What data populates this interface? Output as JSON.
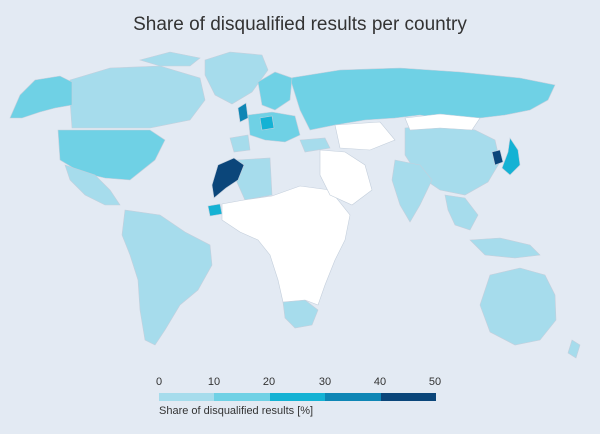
{
  "title": "Share of disqualified results per country",
  "legend": {
    "ticks": [
      "0",
      "10",
      "20",
      "30",
      "40",
      "50"
    ],
    "label": "Share of disqualified results [%]",
    "colors": [
      "#a6dcec",
      "#6fd1e5",
      "#14b2d4",
      "#0e86b5",
      "#0b467a"
    ]
  },
  "colors": {
    "background": "#e3eaf3",
    "no_data": "#ffffff",
    "border": "#c4cfdc"
  },
  "chart_data": {
    "type": "choropleth",
    "value_range": [
      0,
      50
    ],
    "bins": [
      [
        0,
        10
      ],
      [
        10,
        20
      ],
      [
        20,
        30
      ],
      [
        30,
        40
      ],
      [
        40,
        50
      ]
    ],
    "regions": [
      {
        "name": "Canada",
        "bin": 0
      },
      {
        "name": "Alaska",
        "bin": 1
      },
      {
        "name": "Greenland",
        "bin": 0
      },
      {
        "name": "United States",
        "bin": 1
      },
      {
        "name": "Mexico",
        "bin": 0
      },
      {
        "name": "South America",
        "bin": 0
      },
      {
        "name": "Russia",
        "bin": 1
      },
      {
        "name": "China",
        "bin": 0
      },
      {
        "name": "Mongolia",
        "bin": -1
      },
      {
        "name": "India",
        "bin": 0
      },
      {
        "name": "Southeast Asia",
        "bin": 0
      },
      {
        "name": "Japan",
        "bin": 2
      },
      {
        "name": "South Korea",
        "bin": 4
      },
      {
        "name": "Australia",
        "bin": 0
      },
      {
        "name": "New Zealand",
        "bin": 0
      },
      {
        "name": "Algeria",
        "bin": 0
      },
      {
        "name": "Morocco",
        "bin": 4
      },
      {
        "name": "Senegal",
        "bin": 2
      },
      {
        "name": "South Africa",
        "bin": 0
      },
      {
        "name": "Africa (other)",
        "bin": -1
      },
      {
        "name": "Middle East",
        "bin": -1
      },
      {
        "name": "United Kingdom",
        "bin": 3
      },
      {
        "name": "Europe",
        "bin": 1
      },
      {
        "name": "Germany",
        "bin": 2
      },
      {
        "name": "Spain",
        "bin": 0
      },
      {
        "name": "Scandinavia",
        "bin": 1
      },
      {
        "name": "Turkey",
        "bin": 0
      },
      {
        "name": "Kazakhstan",
        "bin": -1
      }
    ]
  }
}
